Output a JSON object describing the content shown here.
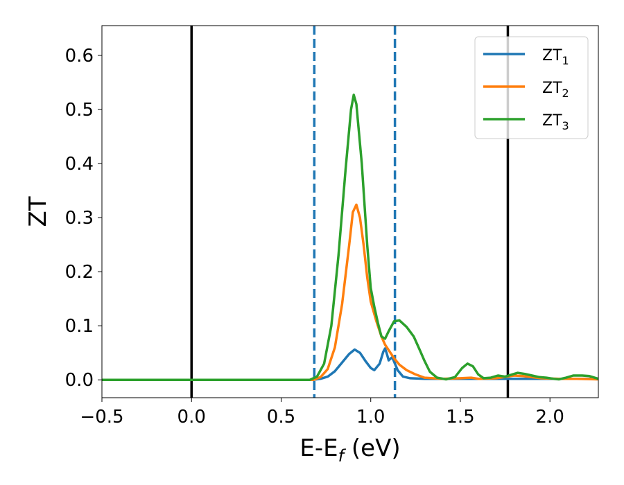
{
  "chart_data": {
    "type": "line",
    "xlabel": "E-E",
    "xlabel_sub": "f",
    "xlabel_unit": " (eV)",
    "ylabel": "ZT",
    "xlim": [
      -0.5,
      2.27
    ],
    "ylim": [
      -0.033,
      0.655
    ],
    "xticks": [
      -0.5,
      0.0,
      0.5,
      1.0,
      1.5,
      2.0
    ],
    "xtick_labels": [
      "−0.5",
      "0.0",
      "0.5",
      "1.0",
      "1.5",
      "2.0"
    ],
    "yticks": [
      0.0,
      0.1,
      0.2,
      0.3,
      0.4,
      0.5,
      0.6
    ],
    "ytick_labels": [
      "0.0",
      "0.1",
      "0.2",
      "0.3",
      "0.4",
      "0.5",
      "0.6"
    ],
    "grid": false,
    "legend_position": "top-right",
    "vlines": [
      {
        "x": 0.0,
        "style": "solid",
        "color": "#000000"
      },
      {
        "x": 1.765,
        "style": "solid",
        "color": "#000000"
      },
      {
        "x": 0.685,
        "style": "dashed",
        "color": "#1f77b4"
      },
      {
        "x": 1.135,
        "style": "dashed",
        "color": "#1f77b4"
      }
    ],
    "series": [
      {
        "name": "ZT",
        "sub": "1",
        "color": "#1f77b4",
        "points": [
          [
            -0.5,
            0
          ],
          [
            0.6,
            0
          ],
          [
            0.68,
            0
          ],
          [
            0.72,
            0.002
          ],
          [
            0.76,
            0.006
          ],
          [
            0.8,
            0.016
          ],
          [
            0.84,
            0.032
          ],
          [
            0.88,
            0.048
          ],
          [
            0.91,
            0.056
          ],
          [
            0.94,
            0.05
          ],
          [
            0.97,
            0.035
          ],
          [
            1.0,
            0.022
          ],
          [
            1.02,
            0.018
          ],
          [
            1.05,
            0.03
          ],
          [
            1.07,
            0.052
          ],
          [
            1.08,
            0.058
          ],
          [
            1.09,
            0.048
          ],
          [
            1.1,
            0.036
          ],
          [
            1.12,
            0.042
          ],
          [
            1.13,
            0.034
          ],
          [
            1.15,
            0.018
          ],
          [
            1.18,
            0.006
          ],
          [
            1.22,
            0.003
          ],
          [
            1.3,
            0.002
          ],
          [
            1.5,
            0.002
          ],
          [
            1.7,
            0.002
          ],
          [
            2.0,
            0.002
          ],
          [
            2.27,
            0.002
          ]
        ]
      },
      {
        "name": "ZT",
        "sub": "2",
        "color": "#ff7f0e",
        "points": [
          [
            -0.5,
            0
          ],
          [
            0.6,
            0
          ],
          [
            0.68,
            0
          ],
          [
            0.72,
            0.005
          ],
          [
            0.76,
            0.02
          ],
          [
            0.8,
            0.06
          ],
          [
            0.84,
            0.14
          ],
          [
            0.88,
            0.25
          ],
          [
            0.9,
            0.31
          ],
          [
            0.92,
            0.324
          ],
          [
            0.94,
            0.3
          ],
          [
            0.96,
            0.25
          ],
          [
            0.98,
            0.19
          ],
          [
            1.0,
            0.145
          ],
          [
            1.03,
            0.11
          ],
          [
            1.06,
            0.08
          ],
          [
            1.08,
            0.065
          ],
          [
            1.1,
            0.055
          ],
          [
            1.13,
            0.04
          ],
          [
            1.16,
            0.028
          ],
          [
            1.2,
            0.018
          ],
          [
            1.25,
            0.01
          ],
          [
            1.3,
            0.004
          ],
          [
            1.4,
            0.002
          ],
          [
            1.5,
            0.003
          ],
          [
            1.56,
            0.004
          ],
          [
            1.6,
            0.002
          ],
          [
            1.7,
            0.003
          ],
          [
            1.8,
            0.008
          ],
          [
            1.85,
            0.007
          ],
          [
            1.95,
            0.003
          ],
          [
            2.05,
            0.002
          ],
          [
            2.15,
            0.002
          ],
          [
            2.27,
            0.001
          ]
        ]
      },
      {
        "name": "ZT",
        "sub": "3",
        "color": "#2ca02c",
        "points": [
          [
            -0.5,
            0
          ],
          [
            0.6,
            0
          ],
          [
            0.66,
            0
          ],
          [
            0.7,
            0.006
          ],
          [
            0.74,
            0.03
          ],
          [
            0.78,
            0.1
          ],
          [
            0.82,
            0.23
          ],
          [
            0.86,
            0.39
          ],
          [
            0.89,
            0.5
          ],
          [
            0.905,
            0.527
          ],
          [
            0.92,
            0.51
          ],
          [
            0.95,
            0.4
          ],
          [
            0.98,
            0.25
          ],
          [
            1.0,
            0.17
          ],
          [
            1.02,
            0.135
          ],
          [
            1.04,
            0.105
          ],
          [
            1.06,
            0.08
          ],
          [
            1.08,
            0.076
          ],
          [
            1.1,
            0.09
          ],
          [
            1.13,
            0.108
          ],
          [
            1.16,
            0.11
          ],
          [
            1.2,
            0.098
          ],
          [
            1.24,
            0.08
          ],
          [
            1.27,
            0.058
          ],
          [
            1.3,
            0.035
          ],
          [
            1.33,
            0.015
          ],
          [
            1.37,
            0.004
          ],
          [
            1.42,
            0.001
          ],
          [
            1.47,
            0.005
          ],
          [
            1.51,
            0.022
          ],
          [
            1.54,
            0.03
          ],
          [
            1.57,
            0.025
          ],
          [
            1.6,
            0.01
          ],
          [
            1.63,
            0.003
          ],
          [
            1.67,
            0.004
          ],
          [
            1.71,
            0.008
          ],
          [
            1.75,
            0.006
          ],
          [
            1.79,
            0.01
          ],
          [
            1.82,
            0.013
          ],
          [
            1.86,
            0.011
          ],
          [
            1.9,
            0.008
          ],
          [
            1.94,
            0.005
          ],
          [
            1.98,
            0.004
          ],
          [
            2.02,
            0.002
          ],
          [
            2.05,
            0.001
          ],
          [
            2.09,
            0.004
          ],
          [
            2.13,
            0.008
          ],
          [
            2.18,
            0.008
          ],
          [
            2.22,
            0.007
          ],
          [
            2.27,
            0.002
          ]
        ]
      }
    ]
  }
}
